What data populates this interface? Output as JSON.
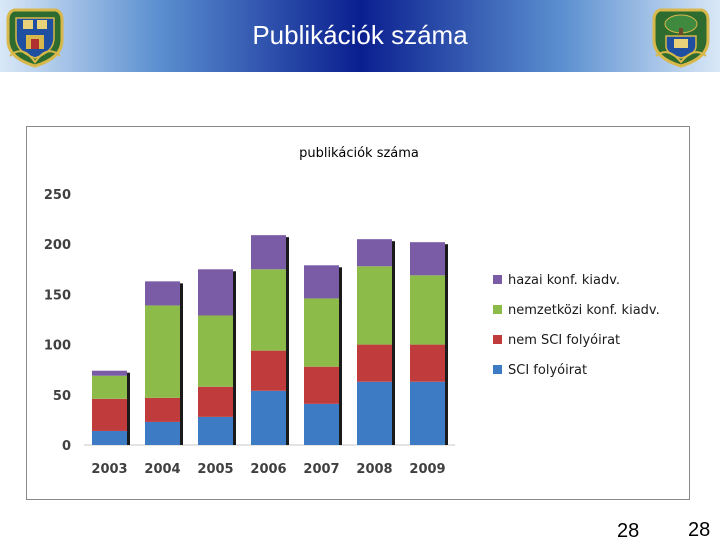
{
  "header": {
    "title": "Publikációk száma"
  },
  "page_numbers": [
    "28",
    "28"
  ],
  "colors": {
    "sci": "#3d7bc4",
    "nem_sci": "#c03b3b",
    "nemzetkozi": "#8dbb4a",
    "hazai": "#7a5ba6"
  },
  "chart_data": {
    "type": "bar",
    "stacked": true,
    "title": "publikációk száma",
    "categories": [
      "2003",
      "2004",
      "2005",
      "2006",
      "2007",
      "2008",
      "2009"
    ],
    "series": [
      {
        "name": "SCI folyóirat",
        "values": [
          14,
          23,
          28,
          54,
          41,
          63,
          63
        ]
      },
      {
        "name": "nem SCI folyóirat",
        "values": [
          32,
          24,
          30,
          40,
          37,
          37,
          37
        ]
      },
      {
        "name": "nemzetközi konf. kiadv.",
        "values": [
          23,
          92,
          71,
          81,
          68,
          78,
          69
        ]
      },
      {
        "name": "hazai konf. kiadv.",
        "values": [
          5,
          24,
          46,
          34,
          33,
          27,
          33
        ]
      }
    ],
    "legend_order": [
      "hazai konf. kiadv.",
      "nemzetközi konf. kiadv.",
      "nem SCI folyóirat",
      "SCI folyóirat"
    ],
    "yticks": [
      "0",
      "50",
      "100",
      "150",
      "200",
      "250"
    ],
    "ylim": [
      0,
      250
    ],
    "grid": false,
    "legend": "right"
  }
}
